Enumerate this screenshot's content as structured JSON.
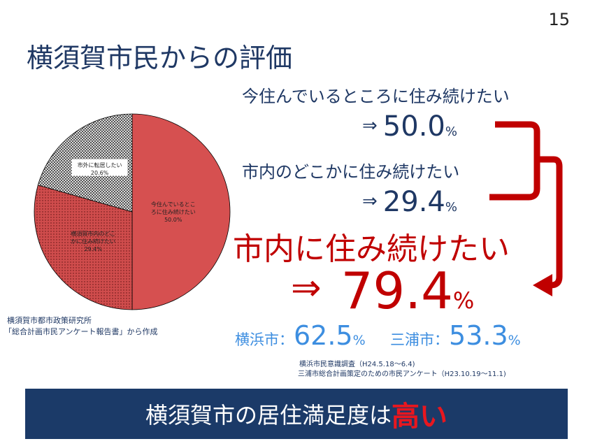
{
  "page_number": "15",
  "title": "横須賀市民からの評価",
  "chart_data": {
    "type": "pie",
    "categories": [
      "今住んでいるところに住み続けたい",
      "市内のどこかに住み続けたい",
      "市外に転居したい"
    ],
    "values": [
      50.0,
      29.4,
      20.6
    ],
    "labels": [
      {
        "line1": "今住んでいるとこ",
        "line2": "ろに住み続けたい",
        "line3": "50.0%"
      },
      {
        "line1": "横須賀市内のどこ",
        "line2": "かに住み続けたい",
        "line3": "29.4%"
      },
      {
        "line1": "市外に転居したい",
        "line2": "20.6%"
      }
    ],
    "colors": [
      "#d65050",
      "#cf4c4c",
      "#ffffff"
    ],
    "patterns": [
      "solid",
      "dots",
      "crosshatch"
    ],
    "stroke": "#000000"
  },
  "source_left": {
    "line1": "横須賀市都市政策研究所",
    "line2": "「総合計画市民アンケート報告書」から作成"
  },
  "stats": {
    "item1": {
      "question": "今住んでいるところに住み続けたい",
      "arrow": "⇒",
      "value": "50.0",
      "unit": "%"
    },
    "item2": {
      "question": "市内のどこかに住み続けたい",
      "arrow": "⇒",
      "value": "29.4",
      "unit": "%"
    },
    "total": {
      "question": "市内に住み続けたい",
      "arrow": "⇒",
      "value": "79.4",
      "unit": "%"
    }
  },
  "comparison": {
    "city1": {
      "name": "横浜市：",
      "value": "62.5",
      "unit": "%"
    },
    "city2": {
      "name": "三浦市：",
      "value": "53.3",
      "unit": "%"
    }
  },
  "source_right": {
    "line1": "横浜市民意識調査（H24.5.18～6.4)",
    "line2": "三浦市総合計画策定のための市民アンケート（H23.10.19～11.1)"
  },
  "banner": {
    "text": "横須賀市の居住満足度は",
    "emphasis": "高い"
  },
  "colors": {
    "navy": "#1f3864",
    "red": "#c00000",
    "blue": "#3d8ee0",
    "banner_bg": "#1b3a68",
    "banner_emphasis": "#e8171f"
  }
}
